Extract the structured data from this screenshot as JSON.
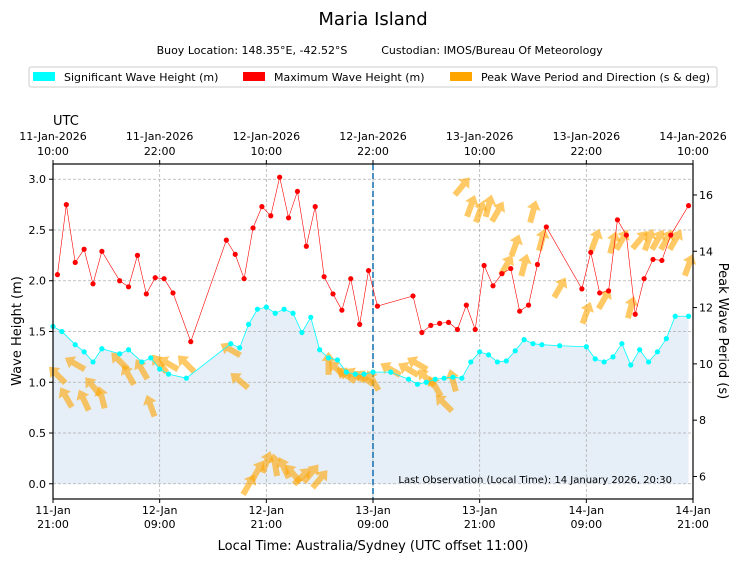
{
  "chart_data": {
    "type": "line",
    "title": "Maria Island",
    "subtitle_location": "Buoy Location: 148.35°E, -42.52°S",
    "subtitle_custodian": "Custodian: IMOS/Bureau Of Meteorology",
    "legend": [
      {
        "label": "Significant Wave Height (m)",
        "color": "#00ffff"
      },
      {
        "label": "Maximum Wave Height (m)",
        "color": "#ff0000"
      },
      {
        "label": "Peak Wave Period and Direction (s & deg)",
        "color": "#ffa500"
      }
    ],
    "xlabel_bottom": "Local Time: Australia/Sydney (UTC offset 11:00)",
    "xlabel_top": "UTC",
    "ylabel_left": "Wave Height (m)",
    "ylabel_right": "Peak Wave Period (s)",
    "x_range_hours": [
      0,
      72
    ],
    "ylim_left": [
      -0.15,
      3.15
    ],
    "ylim_right": [
      5.2,
      17.1
    ],
    "left_ticks": [
      "0.0",
      "0.5",
      "1.0",
      "1.5",
      "2.0",
      "2.5",
      "3.0"
    ],
    "right_ticks": [
      "6",
      "8",
      "10",
      "12",
      "14",
      "16"
    ],
    "bottom_ticks": [
      {
        "h": 0,
        "date": "11-Jan",
        "time": "21:00"
      },
      {
        "h": 12,
        "date": "12-Jan",
        "time": "09:00"
      },
      {
        "h": 24,
        "date": "12-Jan",
        "time": "21:00"
      },
      {
        "h": 36,
        "date": "13-Jan",
        "time": "09:00"
      },
      {
        "h": 48,
        "date": "13-Jan",
        "time": "21:00"
      },
      {
        "h": 60,
        "date": "14-Jan",
        "time": "09:00"
      },
      {
        "h": 72,
        "date": "14-Jan",
        "time": "21:00"
      }
    ],
    "top_ticks": [
      {
        "h": 0,
        "date": "11-Jan-2026",
        "time": "10:00"
      },
      {
        "h": 12,
        "date": "11-Jan-2026",
        "time": "22:00"
      },
      {
        "h": 24,
        "date": "12-Jan-2026",
        "time": "10:00"
      },
      {
        "h": 36,
        "date": "12-Jan-2026",
        "time": "22:00"
      },
      {
        "h": 48,
        "date": "13-Jan-2026",
        "time": "10:00"
      },
      {
        "h": 60,
        "date": "13-Jan-2026",
        "time": "22:00"
      },
      {
        "h": 72,
        "date": "14-Jan-2026",
        "time": "10:00"
      }
    ],
    "current_time_hour": 36,
    "last_observation": "Last Observation (Local Time): 14 January 2026, 20:30",
    "sig_height": {
      "x": [
        0,
        1,
        2.5,
        3.5,
        4.5,
        5.5,
        7.5,
        8.5,
        10,
        11,
        12,
        13,
        15,
        20,
        21,
        22,
        23,
        24,
        25,
        26,
        27,
        28,
        29,
        30,
        31,
        32,
        33,
        34,
        35,
        36,
        38,
        40,
        41,
        42,
        43,
        44,
        45,
        46,
        47,
        48,
        49,
        50,
        51,
        52,
        53,
        54,
        55,
        57,
        60,
        61,
        62,
        63,
        64,
        65,
        66,
        67,
        68,
        69,
        70,
        71.5
      ],
      "y": [
        1.55,
        1.5,
        1.37,
        1.3,
        1.2,
        1.33,
        1.28,
        1.32,
        1.2,
        1.24,
        1.13,
        1.08,
        1.04,
        1.38,
        1.34,
        1.57,
        1.72,
        1.74,
        1.68,
        1.72,
        1.68,
        1.49,
        1.64,
        1.32,
        1.24,
        1.22,
        1.1,
        1.08,
        1.08,
        1.1,
        1.1,
        1.03,
        0.98,
        1.0,
        1.03,
        1.04,
        1.05,
        1.04,
        1.2,
        1.3,
        1.27,
        1.2,
        1.21,
        1.31,
        1.42,
        1.38,
        1.37,
        1.36,
        1.35,
        1.23,
        1.2,
        1.25,
        1.38,
        1.17,
        1.32,
        1.2,
        1.3,
        1.43,
        1.65,
        1.65
      ]
    },
    "max_height": {
      "x": [
        0.5,
        1.5,
        2.5,
        3.5,
        4.5,
        5.5,
        7.5,
        8.5,
        9.5,
        10.5,
        11.5,
        12.5,
        13.5,
        15.5,
        19.5,
        20.5,
        21.5,
        22.5,
        23.5,
        24.5,
        25.5,
        26.5,
        27.5,
        28.5,
        29.5,
        30.5,
        31.5,
        32.5,
        33.5,
        34.5,
        35.5,
        36.5,
        40.5,
        41.5,
        42.5,
        43.5,
        44.5,
        45.5,
        46.5,
        47.5,
        48.5,
        49.5,
        50.5,
        51.5,
        52.5,
        53.5,
        54.5,
        55.5,
        59.5,
        60.5,
        61.5,
        62.5,
        63.5,
        64.5,
        65.5,
        66.5,
        67.5,
        68.5,
        69.5,
        71.5
      ],
      "y": [
        2.06,
        2.75,
        2.18,
        2.31,
        1.97,
        2.29,
        2.0,
        1.94,
        2.25,
        1.87,
        2.03,
        2.02,
        1.88,
        1.4,
        2.4,
        2.26,
        2.02,
        2.52,
        2.73,
        2.64,
        3.02,
        2.62,
        2.88,
        2.34,
        2.73,
        2.04,
        1.87,
        1.71,
        2.02,
        1.57,
        2.1,
        1.75,
        1.85,
        1.49,
        1.56,
        1.58,
        1.59,
        1.52,
        1.76,
        1.52,
        2.15,
        1.95,
        2.07,
        2.12,
        1.7,
        1.76,
        2.16,
        2.53,
        1.92,
        2.28,
        1.88,
        1.9,
        2.6,
        2.45,
        1.67,
        2.02,
        2.21,
        2.2,
        2.45,
        2.74
      ]
    },
    "peak_period": {
      "x": [
        0.5,
        1.5,
        2.5,
        3.5,
        4.5,
        5.5,
        7.5,
        8.5,
        10,
        11,
        12,
        13,
        15,
        20,
        21,
        22,
        23,
        24,
        25,
        26,
        27,
        28,
        29,
        30,
        31,
        32,
        33,
        34,
        35,
        36,
        38,
        40,
        41,
        42,
        43,
        44,
        45,
        46,
        47,
        48,
        49,
        50,
        51,
        52,
        53,
        54,
        55,
        57,
        60,
        61,
        62,
        63,
        64,
        65,
        66,
        67,
        68,
        69,
        70,
        71.5
      ],
      "s": [
        9.6,
        8.8,
        10.0,
        8.7,
        9.2,
        8.8,
        10.1,
        9.6,
        9.8,
        8.5,
        10.0,
        10.0,
        10.0,
        10.5,
        9.4,
        5.7,
        6.2,
        6.5,
        6.4,
        6.3,
        6.1,
        6.0,
        6.1,
        5.9,
        10.0,
        9.8,
        9.6,
        9.6,
        9.5,
        9.4,
        9.8,
        9.8,
        10.0,
        9.5,
        9.2,
        8.6,
        9.4,
        16.3,
        15.6,
        15.4,
        15.6,
        15.4,
        13.5,
        14.2,
        13.5,
        15.4,
        14.4,
        12.7,
        11.8,
        14.4,
        12.3,
        14.3,
        14.4,
        12.0,
        14.4,
        14.4,
        14.4,
        14.4,
        14.4,
        13.5
      ],
      "dir": [
        315,
        330,
        300,
        335,
        320,
        345,
        315,
        330,
        330,
        340,
        320,
        300,
        315,
        300,
        310,
        30,
        30,
        20,
        350,
        335,
        320,
        45,
        40,
        40,
        0,
        315,
        305,
        300,
        305,
        330,
        300,
        300,
        300,
        315,
        330,
        315,
        345,
        40,
        20,
        20,
        15,
        30,
        30,
        20,
        15,
        15,
        15,
        30,
        20,
        20,
        30,
        15,
        30,
        15,
        40,
        20,
        30,
        30,
        30,
        20
      ]
    }
  }
}
